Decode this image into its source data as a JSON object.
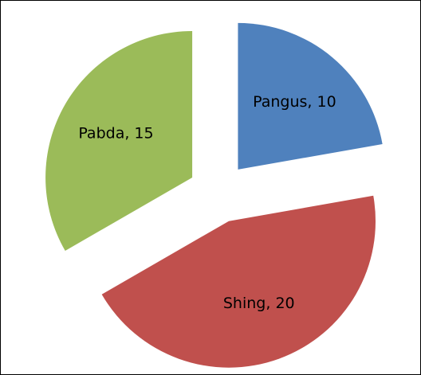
{
  "chart_data": {
    "type": "pie",
    "labels": [
      "Pangus, 10",
      "Shing, 20",
      "Pabda, 15"
    ],
    "values": [
      10,
      20,
      15
    ],
    "colors": [
      "#4f81bd",
      "#c0504d",
      "#9bbb59"
    ],
    "exploded": true
  }
}
